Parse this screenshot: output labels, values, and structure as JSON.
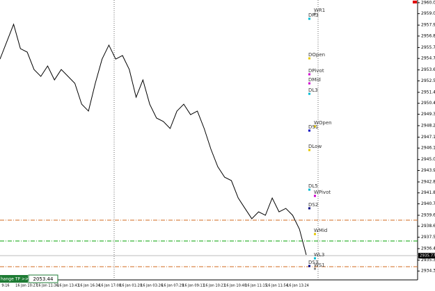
{
  "chart_data": {
    "type": "line",
    "color": "#000000",
    "values": [
      2954.64,
      2956.31,
      2957.98,
      2955.64,
      2955.31,
      2953.64,
      2952.98,
      2953.98,
      2952.64,
      2953.64,
      2952.98,
      2952.31,
      2950.31,
      2949.65,
      2952.31,
      2954.64,
      2955.98,
      2954.64,
      2954.98,
      2953.64,
      2950.98,
      2952.64,
      2950.31,
      2948.98,
      2948.65,
      2947.98,
      2949.65,
      2950.31,
      2949.31,
      2949.65,
      2947.98,
      2945.98,
      2944.31,
      2943.31,
      2942.98,
      2941.31,
      2940.31,
      2939.32,
      2939.98,
      2939.65,
      2941.31,
      2939.98,
      2940.31,
      2939.65,
      2938.32,
      2935.85
    ],
    "time_labels": [
      "9:16",
      "16 Jan 10:27",
      "16 Jan 11:36",
      "16 Jan 13:41",
      "16 Jan 16:34",
      "16 Jan 17:08",
      "16 Jan 01:20",
      "16 Jan 03:26",
      "16 Jan 07:29",
      "16 Jan 09:11",
      "16 Jan 10:21",
      "16 Jan 10:40",
      "16 Jan 11:15",
      "16 Jan 11:54",
      "16 Jan 13:24"
    ],
    "ylim": [
      2933.45,
      2960.31
    ],
    "yticks": [
      {
        "value": 2934.3,
        "label": "2934.30"
      },
      2935.35,
      2936.45,
      2937.55,
      {
        "value": 2938.6,
        "label": "2938.60"
      },
      2939.65,
      2940.75,
      {
        "value": 2941.8,
        "label": "2941.80"
      },
      2942.85,
      2943.95,
      {
        "value": 2945,
        "label": "2945.00"
      },
      {
        "value": 2946.1,
        "label": "2946.10"
      },
      2947.15,
      2948.25,
      2949.35,
      {
        "value": 2950.4,
        "label": "2950.40"
      },
      2951.45,
      2952.55,
      {
        "value": 2953.6,
        "label": "2953.60"
      },
      {
        "value": 2954.7,
        "label": "2954.70"
      },
      2955.75,
      2956.85,
      {
        "value": 2957.9,
        "label": "2957.90"
      },
      {
        "value": 2959,
        "label": "2959.00"
      },
      2960.05
    ],
    "hlines": [
      {
        "value": 2939.18,
        "color": "#d2691e",
        "style": "dashdot"
      },
      {
        "value": 2937.18,
        "color": "#00a000",
        "style": "dashdot"
      },
      {
        "value": 2935.78,
        "color": "#b0b0b0",
        "style": "solid"
      },
      {
        "value": 2934.72,
        "color": "#d2691e",
        "style": "dashdot"
      }
    ],
    "levels": [
      {
        "name": "WR1",
        "value": 2958.98,
        "color": "#888888"
      },
      {
        "name": "DR3",
        "value": 2958.51,
        "color": "#00bcd4"
      },
      {
        "name": "DOpen",
        "value": 2954.71,
        "color": "#e6c800"
      },
      {
        "name": "DPivot",
        "value": 2953.18,
        "color": "#d000d0"
      },
      {
        "name": "DMid",
        "value": 2952.31,
        "color": "#d000d0"
      },
      {
        "name": "DL3",
        "value": 2951.31,
        "color": "#00bcd4"
      },
      {
        "name": "WOpen",
        "value": 2948.18,
        "color": "#e6c800"
      },
      {
        "name": "DS1",
        "value": 2947.78,
        "color": "#0000c0"
      },
      {
        "name": "DLow",
        "value": 2945.91,
        "color": "#e6c800"
      },
      {
        "name": "DL5",
        "value": 2942.11,
        "color": "#00bcd4"
      },
      {
        "name": "WPivot",
        "value": 2941.51,
        "color": "#d000d0"
      },
      {
        "name": "DS2",
        "value": 2940.32,
        "color": "#000080"
      },
      {
        "name": "WMid",
        "value": 2937.85,
        "color": "#e6c800"
      },
      {
        "name": "WL3",
        "value": 2935.52,
        "color": "#00bcd4"
      },
      {
        "name": "DS3",
        "value": 2934.78,
        "color": "#000080"
      },
      {
        "name": "WS1",
        "value": 2934.52,
        "color": "#888888"
      }
    ],
    "current_price": {
      "value": 2935.77,
      "label": "2935.77"
    },
    "top_marker": 2960.05,
    "panel": {
      "button": "hange TP >>",
      "field": "2053.44"
    }
  }
}
